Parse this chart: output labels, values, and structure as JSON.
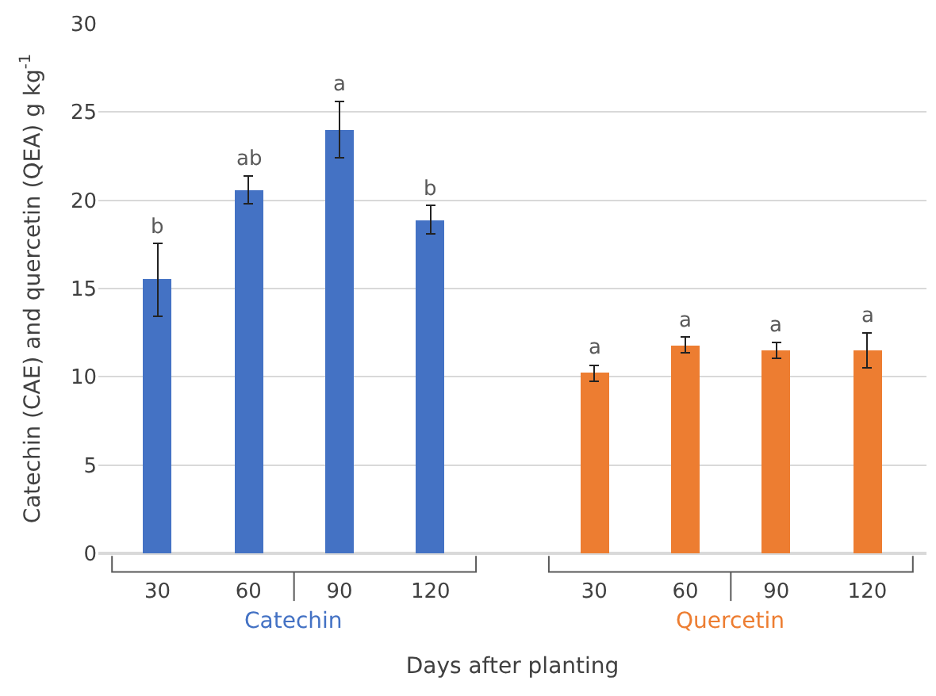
{
  "chart_data": {
    "type": "bar",
    "categories": [
      "30",
      "60",
      "90",
      "120",
      "30",
      "60",
      "90",
      "120"
    ],
    "series": [
      {
        "name": "Catechin",
        "color": "#4472c4",
        "values": [
          15.5,
          20.6,
          24.0,
          18.9,
          null,
          null,
          null,
          null
        ],
        "errors": [
          2.05,
          0.8,
          1.6,
          0.8,
          null,
          null,
          null,
          null
        ],
        "value_labels": [
          "b",
          "ab",
          "a",
          "b",
          null,
          null,
          null,
          null
        ]
      },
      {
        "name": "Quercetin",
        "color": "#ed7d31",
        "values": [
          null,
          null,
          null,
          null,
          10.2,
          11.8,
          11.5,
          11.5
        ],
        "errors": [
          null,
          null,
          null,
          null,
          0.45,
          0.45,
          0.45,
          1.0
        ],
        "value_labels": [
          null,
          null,
          null,
          null,
          "a",
          "a",
          "a",
          "a"
        ]
      }
    ],
    "xlabel": "Days after planting",
    "ylabel": "Catechin (CAE) and quercetin (QEA) g kg$^{-1}$",
    "ylim": [
      0,
      30
    ],
    "yticks": [
      0,
      5,
      10,
      15,
      20,
      25,
      30
    ],
    "grid": "y",
    "legend": false
  }
}
